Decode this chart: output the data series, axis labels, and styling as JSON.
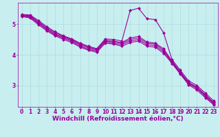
{
  "background_color": "#c8eef0",
  "line_color": "#990099",
  "xlabel": "Windchill (Refroidissement éolien,°C)",
  "xlim": [
    -0.5,
    23.5
  ],
  "ylim": [
    2.3,
    5.7
  ],
  "yticks": [
    3,
    4,
    5
  ],
  "xticks": [
    0,
    1,
    2,
    3,
    4,
    5,
    6,
    7,
    8,
    9,
    10,
    11,
    12,
    13,
    14,
    15,
    16,
    17,
    18,
    19,
    20,
    21,
    22,
    23
  ],
  "lines": [
    {
      "x": [
        0,
        1,
        2,
        3,
        4,
        5,
        6,
        7,
        8,
        9,
        10,
        11,
        12,
        13,
        14,
        15,
        16,
        17,
        18,
        19,
        20,
        21,
        22,
        23
      ],
      "y": [
        5.32,
        5.3,
        5.12,
        4.92,
        4.75,
        4.62,
        4.52,
        4.38,
        4.28,
        4.2,
        4.52,
        4.5,
        4.45,
        5.45,
        5.52,
        5.18,
        5.15,
        4.72,
        3.85,
        3.5,
        3.15,
        3.0,
        2.75,
        2.5
      ]
    },
    {
      "x": [
        0,
        1,
        2,
        3,
        4,
        5,
        6,
        7,
        8,
        9,
        10,
        11,
        12,
        13,
        14,
        15,
        16,
        17,
        18,
        19,
        20,
        21,
        22,
        23
      ],
      "y": [
        5.3,
        5.28,
        5.08,
        4.88,
        4.72,
        4.6,
        4.5,
        4.35,
        4.25,
        4.18,
        4.48,
        4.45,
        4.4,
        4.55,
        4.6,
        4.42,
        4.38,
        4.2,
        3.8,
        3.45,
        3.1,
        2.95,
        2.7,
        2.45
      ]
    },
    {
      "x": [
        0,
        1,
        2,
        3,
        4,
        5,
        6,
        7,
        8,
        9,
        10,
        11,
        12,
        13,
        14,
        15,
        16,
        17,
        18,
        19,
        20,
        21,
        22,
        23
      ],
      "y": [
        5.28,
        5.25,
        5.05,
        4.85,
        4.68,
        4.57,
        4.47,
        4.32,
        4.22,
        4.15,
        4.45,
        4.42,
        4.37,
        4.5,
        4.55,
        4.38,
        4.35,
        4.15,
        3.78,
        3.42,
        3.08,
        2.92,
        2.67,
        2.43
      ]
    },
    {
      "x": [
        0,
        1,
        2,
        3,
        4,
        5,
        6,
        7,
        8,
        9,
        10,
        11,
        12,
        13,
        14,
        15,
        16,
        17,
        18,
        19,
        20,
        21,
        22,
        23
      ],
      "y": [
        5.27,
        5.23,
        5.02,
        4.82,
        4.65,
        4.54,
        4.44,
        4.28,
        4.18,
        4.12,
        4.42,
        4.38,
        4.33,
        4.45,
        4.5,
        4.33,
        4.3,
        4.1,
        3.75,
        3.4,
        3.05,
        2.9,
        2.64,
        2.4
      ]
    },
    {
      "x": [
        0,
        1,
        2,
        3,
        4,
        5,
        6,
        7,
        8,
        9,
        10,
        11,
        12,
        13,
        14,
        15,
        16,
        17,
        18,
        19,
        20,
        21,
        22,
        23
      ],
      "y": [
        5.25,
        5.2,
        4.98,
        4.78,
        4.62,
        4.5,
        4.4,
        4.25,
        4.15,
        4.08,
        4.38,
        4.35,
        4.28,
        4.4,
        4.45,
        4.28,
        4.25,
        4.05,
        3.72,
        3.37,
        3.02,
        2.85,
        2.6,
        2.37
      ]
    }
  ],
  "marker": "D",
  "markersize": 2.0,
  "linewidth": 0.8,
  "grid_color": "#aadddd",
  "xlabel_fontsize": 6.5,
  "tick_fontsize": 5.5,
  "fig_width": 3.2,
  "fig_height": 2.0,
  "dpi": 100
}
